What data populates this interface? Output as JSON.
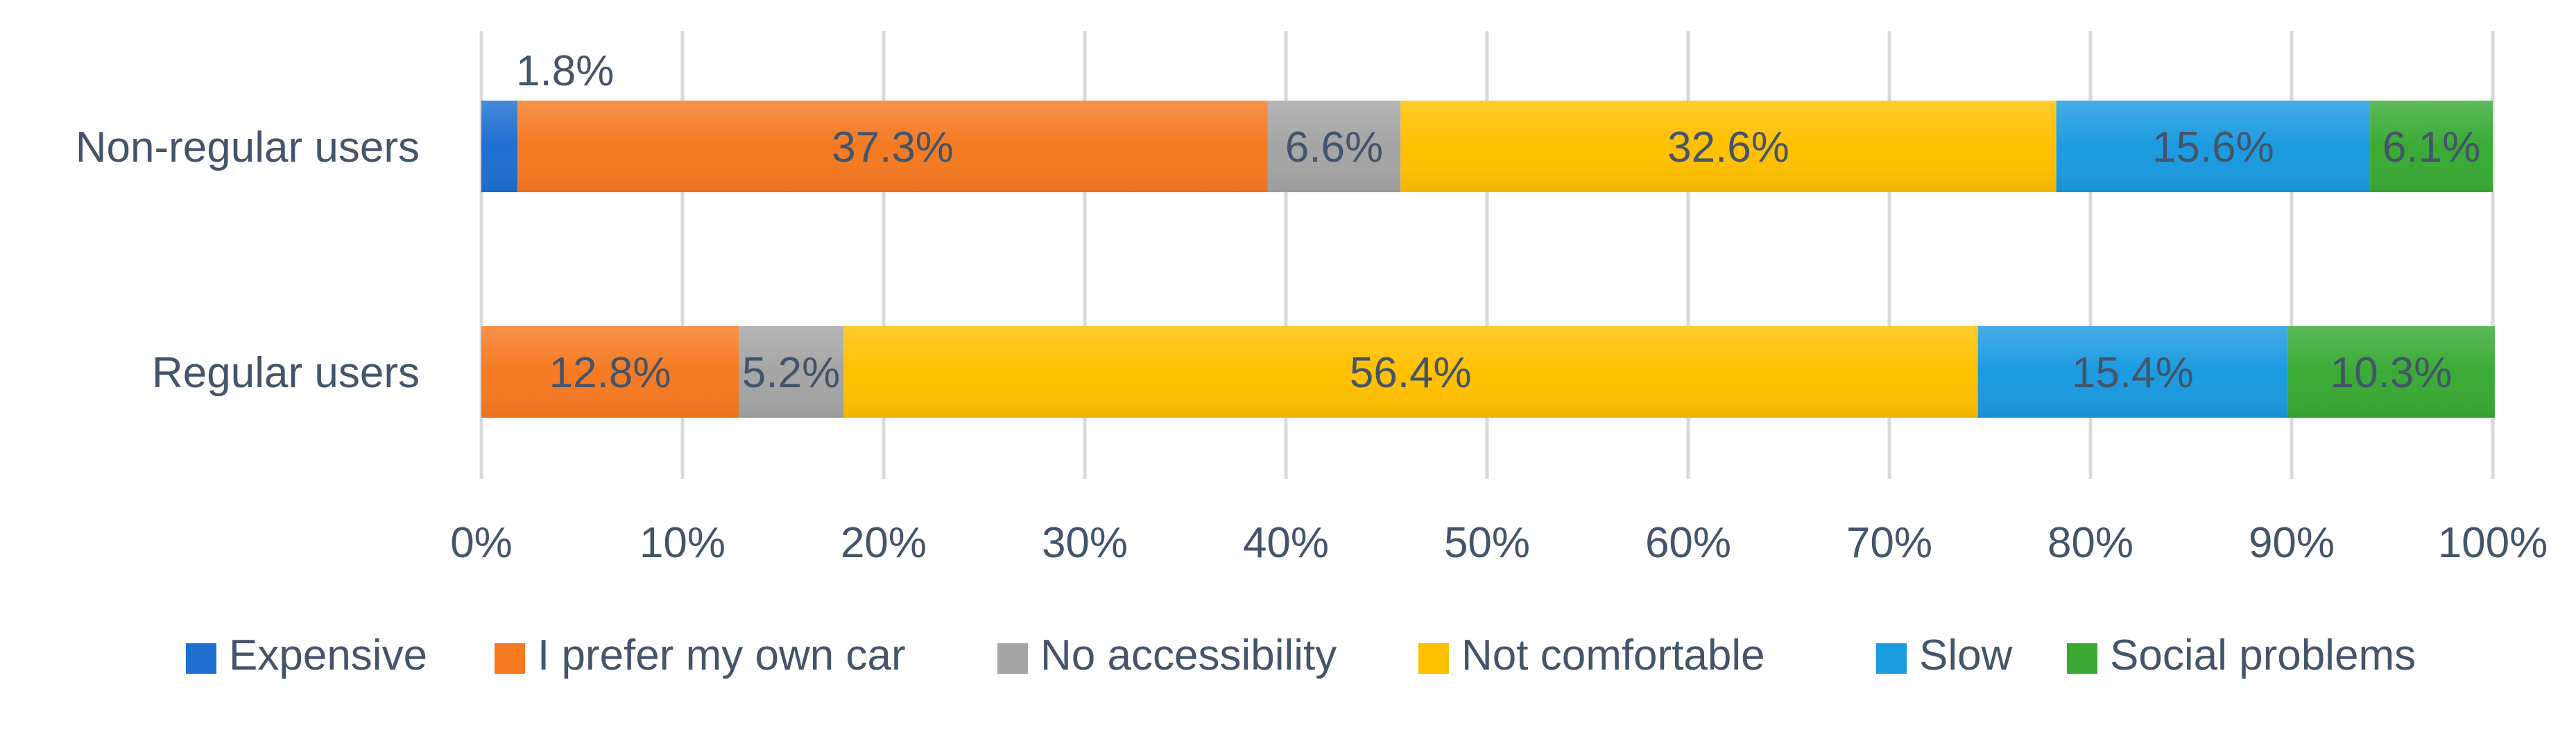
{
  "chart_data": {
    "type": "bar",
    "orientation": "horizontal",
    "stacked": "percent",
    "categories": [
      "Non-regular users",
      "Regular users"
    ],
    "series": [
      {
        "name": "Expensive",
        "color": "#1f6fd1",
        "values": [
          1.8,
          0
        ],
        "labels": [
          "1.8%",
          ""
        ]
      },
      {
        "name": "I prefer my own car",
        "color": "#f57a22",
        "values": [
          37.3,
          12.8
        ],
        "labels": [
          "37.3%",
          "12.8%"
        ]
      },
      {
        "name": "No accessibility",
        "color": "#a5a5a5",
        "values": [
          6.6,
          5.2
        ],
        "labels": [
          "6.6%",
          "5.2%"
        ]
      },
      {
        "name": "Not comfortable",
        "color": "#ffc000",
        "values": [
          32.6,
          56.4
        ],
        "labels": [
          "32.6%",
          "56.4%"
        ]
      },
      {
        "name": "Slow",
        "color": "#1b9be0",
        "values": [
          15.6,
          15.4
        ],
        "labels": [
          "15.6%",
          "15.4%"
        ]
      },
      {
        "name": "Social problems",
        "color": "#3aaa35",
        "values": [
          6.1,
          10.3
        ],
        "labels": [
          "6.1%",
          "10.3%"
        ]
      }
    ],
    "xlim": [
      0,
      100
    ],
    "xticks": [
      "0%",
      "10%",
      "20%",
      "30%",
      "40%",
      "50%",
      "60%",
      "70%",
      "80%",
      "90%",
      "100%"
    ],
    "grid": "vertical",
    "legend": "bottom",
    "title": "",
    "xlabel": "",
    "ylabel": ""
  }
}
